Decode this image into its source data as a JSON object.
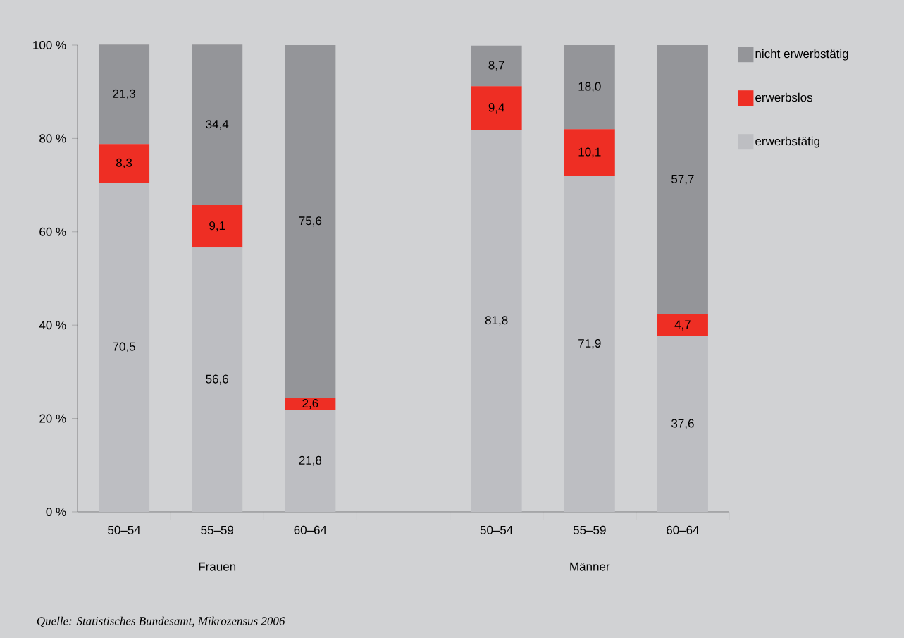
{
  "chart_data": {
    "type": "bar",
    "stacked": true,
    "categories": [
      "50–54",
      "55–59",
      "60–64",
      null,
      "50–54",
      "55–59",
      "60–64"
    ],
    "series": [
      {
        "name": "erwerbstätig",
        "color": "#bdbec2",
        "values": [
          70.5,
          56.6,
          21.8,
          null,
          81.8,
          71.9,
          37.6
        ],
        "value_labels": [
          "70,5",
          "56,6",
          "21,8",
          null,
          "81,8",
          "71,9",
          "37,6"
        ]
      },
      {
        "name": "erwerbslos",
        "color": "#ee2e24",
        "values": [
          8.3,
          9.1,
          2.6,
          null,
          9.4,
          10.1,
          4.7
        ],
        "value_labels": [
          "8,3",
          "9,1",
          "2,6",
          null,
          "9,4",
          "10,1",
          "4,7"
        ]
      },
      {
        "name": "nicht erwerbstätig",
        "color": "#949599",
        "values": [
          21.3,
          34.4,
          75.6,
          null,
          8.7,
          18.0,
          57.7
        ],
        "value_labels": [
          "21,3",
          "34,4",
          "75,6",
          null,
          "8,7",
          "18,0",
          "57,7"
        ]
      }
    ],
    "ylim": [
      0,
      100
    ],
    "yticks": [
      {
        "value": 0,
        "label": "0 %"
      },
      {
        "value": 20,
        "label": "20 %"
      },
      {
        "value": 40,
        "label": "40 %"
      },
      {
        "value": 60,
        "label": "60 %"
      },
      {
        "value": 80,
        "label": "80 %"
      },
      {
        "value": 100,
        "label": "100 %"
      }
    ],
    "grid": false,
    "legend": "top right",
    "annotations": [
      "Frauen",
      "Männer",
      "Quelle: Statistisches Bundesamt, Mikrozensus 2006"
    ]
  }
}
